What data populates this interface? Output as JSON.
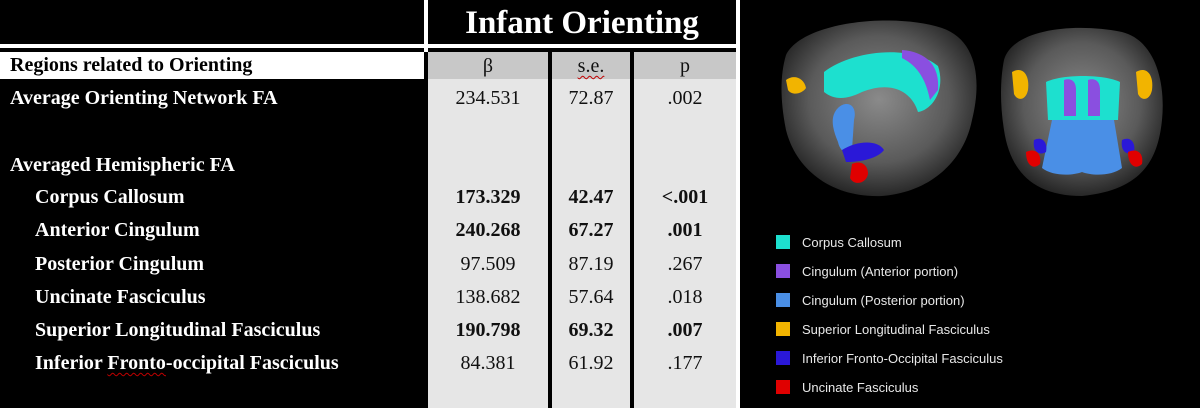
{
  "title": "Infant Orienting",
  "header": {
    "row_label": "Regions related to Orienting",
    "col_beta": "β",
    "col_se": "s.e.",
    "col_p": "p"
  },
  "rows": [
    {
      "label": "Average Orienting Network FA",
      "beta": "234.531",
      "se": "72.87",
      "p": ".002",
      "bold": false
    },
    {
      "label": "Averaged Hemispheric FA",
      "beta": "",
      "se": "",
      "p": "",
      "bold": false
    },
    {
      "label": "Corpus Callosum",
      "beta": "173.329",
      "se": "42.47",
      "p": "<.001",
      "bold": true
    },
    {
      "label": "Anterior Cingulum",
      "beta": "240.268",
      "se": "67.27",
      "p": ".001",
      "bold": true
    },
    {
      "label": "Posterior Cingulum",
      "beta": "97.509",
      "se": "87.19",
      "p": ".267",
      "bold": false
    },
    {
      "label": "Uncinate Fasciculus",
      "beta": "138.682",
      "se": "57.64",
      "p": ".018",
      "bold": false
    },
    {
      "label": "Superior Longitudinal Fasciculus",
      "beta": "190.798",
      "se": "69.32",
      "p": ".007",
      "bold": true
    },
    {
      "label": "Inferior Fronto-occipital Fasciculus",
      "beta": "84.381",
      "se": "61.92",
      "p": ".177",
      "bold": false
    }
  ],
  "legend": [
    {
      "label": "Corpus Callosum",
      "color": "#1de0cf"
    },
    {
      "label": "Cingulum (Anterior portion)",
      "color": "#8a4fe0"
    },
    {
      "label": "Cingulum (Posterior portion)",
      "color": "#4a8fe6"
    },
    {
      "label": "Superior Longitudinal Fasciculus",
      "color": "#f2b400"
    },
    {
      "label": "Inferior Fronto-Occipital Fasciculus",
      "color": "#2a18d8"
    },
    {
      "label": "Uncinate Fasciculus",
      "color": "#e00000"
    }
  ]
}
